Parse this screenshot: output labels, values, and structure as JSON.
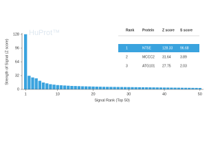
{
  "chart_data": {
    "type": "bar",
    "watermark": "HuProt™",
    "x_label": "Signal Rank (Top 50)",
    "y_label": "Strength of Signal (Z score)",
    "x": [
      1,
      2,
      3,
      4,
      5,
      6,
      7,
      8,
      9,
      10,
      11,
      12,
      13,
      14,
      15,
      16,
      17,
      18,
      19,
      20,
      21,
      22,
      23,
      24,
      25,
      26,
      27,
      28,
      29,
      30,
      31,
      32,
      33,
      34,
      35,
      36,
      37,
      38,
      39,
      40,
      41,
      42,
      43,
      44,
      45,
      46,
      47,
      48,
      49,
      50
    ],
    "values": [
      128.33,
      31.64,
      27.75,
      25.72,
      20,
      16,
      14,
      12,
      11,
      10,
      9.5,
      9,
      8.5,
      8,
      7.8,
      7.5,
      7.2,
      7,
      6.8,
      6.6,
      6.4,
      6.2,
      6,
      5.9,
      5.8,
      5.7,
      5.6,
      5.5,
      5.4,
      5.3,
      5.2,
      5.1,
      5,
      4.9,
      4.8,
      4.7,
      4.6,
      4.5,
      4.4,
      4.3,
      4.2,
      4.1,
      4,
      3.9,
      3.8,
      3.7,
      3.6,
      3.5,
      3.4,
      3.3
    ],
    "color": "#3aa3de",
    "xlim": [
      0,
      51
    ],
    "xticks": [
      1,
      10,
      20,
      30,
      40,
      50
    ],
    "ylim": [
      0,
      128
    ],
    "yticks": [
      0,
      32,
      64,
      96,
      128
    ],
    "table": {
      "header": [
        "Rank",
        "Protein",
        "Z score",
        "S score"
      ],
      "rows": [
        [
          "1",
          "NT5E",
          "128.33",
          "96.68"
        ],
        [
          "2",
          "MCCC2",
          "31.64",
          "3.89"
        ],
        [
          "3",
          "ATG101",
          "27.75",
          "2.03"
        ]
      ]
    }
  }
}
